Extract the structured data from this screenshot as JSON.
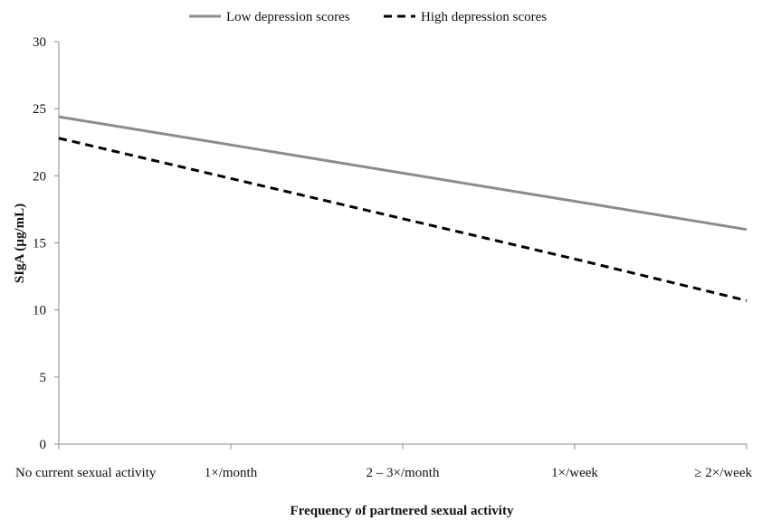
{
  "chart_data": {
    "type": "line",
    "title": "",
    "xlabel": "Frequency of partnered sexual activity",
    "ylabel": "SIgA  (µg/mL)",
    "categories": [
      "No current sexual activity",
      "1×/month",
      "2 – 3×/month",
      "1×/week",
      "≥ 2×/week"
    ],
    "ylim": [
      0,
      30
    ],
    "yticks": [
      0,
      5,
      10,
      15,
      20,
      25,
      30
    ],
    "grid": false,
    "legend_position": "top-center",
    "series": [
      {
        "name": "Low depression scores",
        "values": [
          24.4,
          22.3,
          20.2,
          18.1,
          16.0
        ],
        "color": "#8c8c8c",
        "line_style": "solid"
      },
      {
        "name": "High depression scores",
        "values": [
          22.8,
          19.8,
          16.8,
          13.8,
          10.7
        ],
        "color": "#000000",
        "line_style": "dashed"
      }
    ]
  }
}
